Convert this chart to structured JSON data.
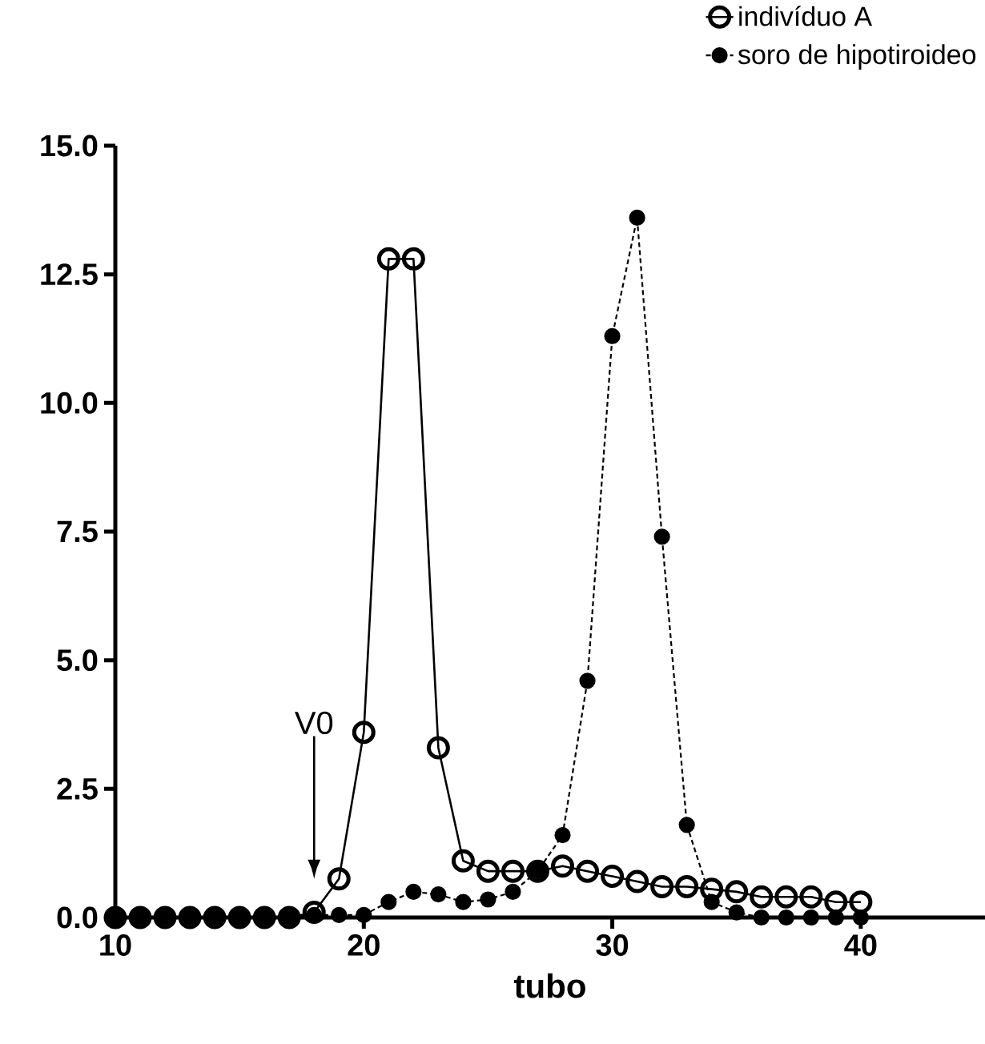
{
  "chart_data": {
    "type": "line",
    "xlabel": "tubo",
    "x": [
      10,
      11,
      12,
      13,
      14,
      15,
      16,
      17,
      18,
      19,
      20,
      21,
      22,
      23,
      24,
      25,
      26,
      27,
      28,
      29,
      30,
      31,
      32,
      33,
      34,
      35,
      36,
      37,
      38,
      39,
      40
    ],
    "series": [
      {
        "name": "indivíduo A",
        "color": "#000000",
        "line_style": "solid",
        "marker": "circle",
        "values": [
          0,
          0,
          0,
          0,
          0,
          0,
          0,
          0,
          0.1,
          0.75,
          3.6,
          12.8,
          12.8,
          3.3,
          1.1,
          0.9,
          0.9,
          0.9,
          1.0,
          0.9,
          0.8,
          0.7,
          0.6,
          0.6,
          0.55,
          0.5,
          0.4,
          0.4,
          0.4,
          0.3,
          0.3
        ]
      },
      {
        "name": "soro de hipotiroideo",
        "color": "#000000",
        "line_style": "dotted",
        "marker": "circle",
        "values": [
          0,
          0,
          0,
          0,
          0,
          0,
          0,
          0,
          0.05,
          0.05,
          0.05,
          0.3,
          0.5,
          0.45,
          0.3,
          0.35,
          0.5,
          0.9,
          1.6,
          4.6,
          11.3,
          13.6,
          7.4,
          1.8,
          0.3,
          0.1,
          0,
          0,
          0,
          0,
          0
        ]
      }
    ],
    "xlim": [
      10,
      45
    ],
    "xticks": [
      10,
      20,
      30,
      40
    ],
    "ylim": [
      0,
      15
    ],
    "yticks": [
      {
        "value": 0,
        "label": "0.0"
      },
      {
        "value": 2.5,
        "label": "2.5"
      },
      {
        "value": 5,
        "label": "5.0"
      },
      {
        "value": 7.5,
        "label": "7.5"
      },
      {
        "value": 10,
        "label": "10.0"
      },
      {
        "value": 12.5,
        "label": "12.5"
      },
      {
        "value": 15,
        "label": "15.0"
      }
    ],
    "annotations": [
      "V0"
    ],
    "grid": false,
    "legend": "top right"
  }
}
